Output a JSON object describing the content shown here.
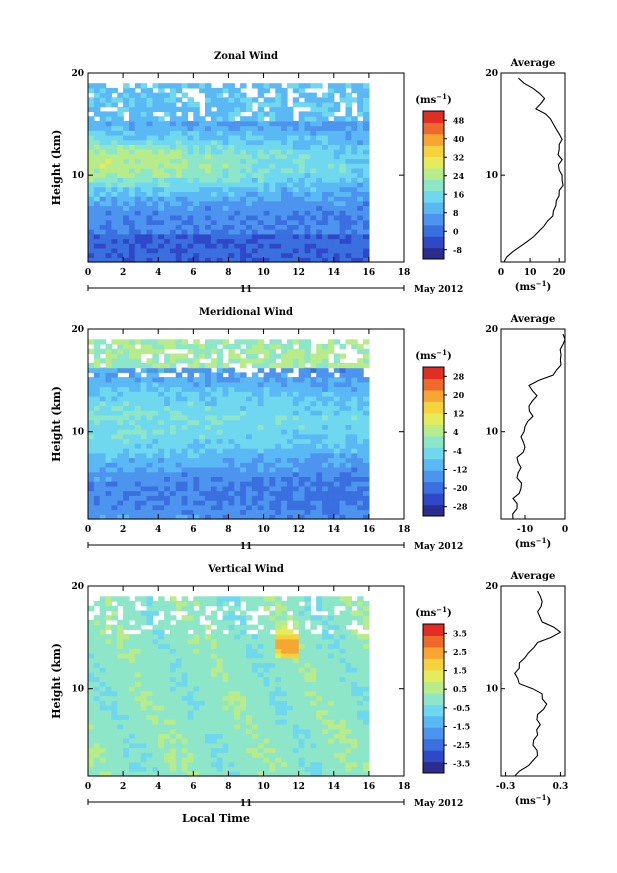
{
  "chart_data": [
    {
      "type": "heatmap",
      "title": "Zonal Wind",
      "xlabel": "",
      "ylabel": "Height (km)",
      "xlim": [
        0,
        18
      ],
      "ylim": [
        1.5,
        20
      ],
      "x_ticks": [
        "0",
        "2",
        "4",
        "6",
        "8",
        "10",
        "12",
        "14",
        "16",
        "18"
      ],
      "y_ticks": [
        "10",
        "20"
      ],
      "date_day": "11",
      "date_label": "May 2012",
      "colorbar": {
        "unit": "(ms",
        "unit_exp": "−1",
        "unit_close": ")",
        "range": [
          -8,
          52
        ],
        "ticks": [
          "48",
          "40",
          "32",
          "24",
          "16",
          "8",
          "0",
          "-8"
        ]
      },
      "profile": {
        "title": "Average",
        "xlim": [
          0,
          22
        ],
        "x_ticks": [
          "0",
          "10",
          "20"
        ],
        "xlabel": "(ms",
        "xlabel_exp": "−1",
        "xlabel_close": ")",
        "y_ticks": [
          "10",
          "20"
        ],
        "heights": [
          1.5,
          2.5,
          3.5,
          4.5,
          5.5,
          6.5,
          7.5,
          8.5,
          9.5,
          10.5,
          11.5,
          12.5,
          13.5,
          14.5,
          15.5,
          16.5,
          17.5,
          18.5,
          19.5
        ],
        "values": [
          1,
          4,
          9,
          13,
          16,
          18,
          19,
          20,
          21,
          20,
          21,
          20,
          21,
          19,
          17,
          12,
          15,
          11,
          6
        ]
      }
    },
    {
      "type": "heatmap",
      "title": "Meridional Wind",
      "xlabel": "",
      "ylabel": "Height (km)",
      "xlim": [
        0,
        18
      ],
      "ylim": [
        1.5,
        20
      ],
      "x_ticks": [
        "0",
        "2",
        "4",
        "6",
        "8",
        "10",
        "12",
        "14",
        "16",
        "18"
      ],
      "y_ticks": [
        "10",
        "20"
      ],
      "date_day": "11",
      "date_label": "May 2012",
      "colorbar": {
        "unit": "(ms",
        "unit_exp": "−1",
        "unit_close": ")",
        "range": [
          -28,
          28
        ],
        "ticks": [
          "28",
          "20",
          "12",
          "4",
          "-4",
          "-12",
          "-20",
          "-28"
        ]
      },
      "profile": {
        "title": "Average",
        "xlim": [
          -16,
          0
        ],
        "x_ticks": [
          "-10",
          "0"
        ],
        "xlabel": "(ms",
        "xlabel_exp": "−1",
        "xlabel_close": ")",
        "y_ticks": [
          "10",
          "20"
        ],
        "heights": [
          1.5,
          2.5,
          3.5,
          4.5,
          5.5,
          6.5,
          7.5,
          8.5,
          9.5,
          10.5,
          11.5,
          12.5,
          13.5,
          14.5,
          15.5,
          16.5,
          17.5,
          18.5,
          19.5
        ],
        "values": [
          -13,
          -12,
          -13,
          -11,
          -12,
          -11,
          -12,
          -10,
          -11,
          -10,
          -8,
          -9,
          -7,
          -9,
          -3,
          -1,
          -1,
          -0.5,
          -0.5
        ]
      }
    },
    {
      "type": "heatmap",
      "title": "Vertical Wind",
      "xlabel": "Local Time",
      "ylabel": "Height (km)",
      "xlim": [
        0,
        18
      ],
      "ylim": [
        1.5,
        20
      ],
      "x_ticks": [
        "0",
        "2",
        "4",
        "6",
        "8",
        "10",
        "12",
        "14",
        "16",
        "18"
      ],
      "y_ticks": [
        "10",
        "20"
      ],
      "date_day": "11",
      "date_label": "May 2012",
      "colorbar": {
        "unit": "(ms",
        "unit_exp": "−1",
        "unit_close": ")",
        "range": [
          -4,
          4
        ],
        "ticks": [
          "3.5",
          "2.5",
          "1.5",
          "0.5",
          "-0.5",
          "-1.5",
          "-2.5",
          "-3.5"
        ]
      },
      "profile": {
        "title": "Average",
        "xlim": [
          -0.35,
          0.35
        ],
        "x_ticks": [
          "-0.3",
          "0.3"
        ],
        "xlabel": "(ms",
        "xlabel_exp": "−1",
        "xlabel_close": ")",
        "y_ticks": [
          "10",
          "20"
        ],
        "heights": [
          1.5,
          2.5,
          3.5,
          4.5,
          5.5,
          6.5,
          7.5,
          8.5,
          9.5,
          10.5,
          11.5,
          12.5,
          13.5,
          14.5,
          15.5,
          16.5,
          17.5,
          18.5,
          19.5
        ],
        "values": [
          -0.2,
          -0.05,
          0.05,
          0.0,
          0.05,
          0.08,
          0.05,
          0.15,
          0.1,
          -0.15,
          -0.2,
          -0.15,
          -0.05,
          0.05,
          0.3,
          0.1,
          0.05,
          0.1,
          0.05
        ]
      }
    }
  ]
}
